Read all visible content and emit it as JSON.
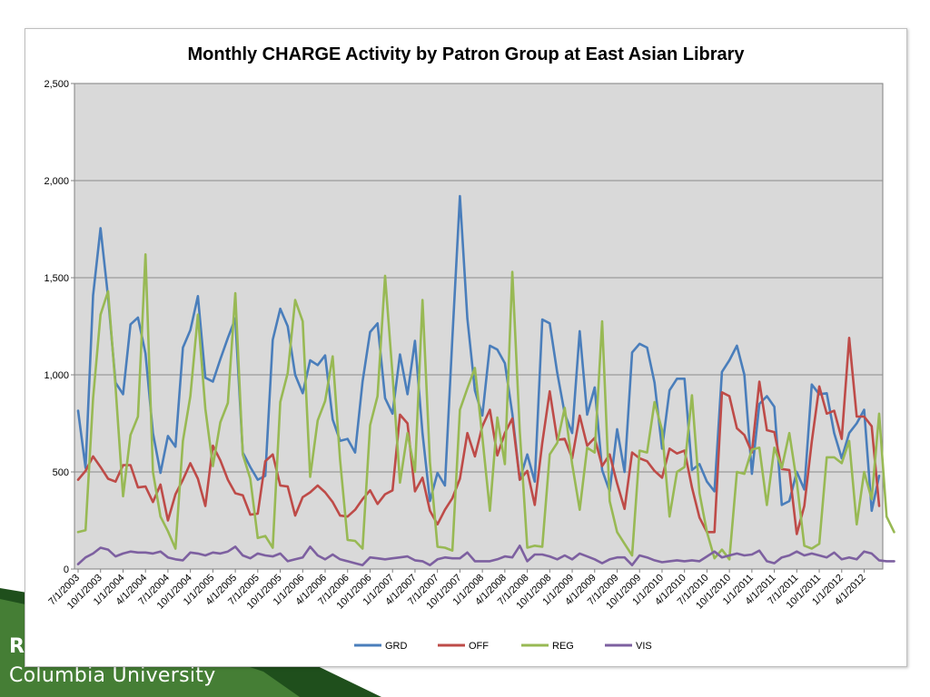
{
  "slide": {
    "footer_line1": "R",
    "footer_line2": "Columbia University",
    "accent_green": "#2e6b2a"
  },
  "chart_data": {
    "type": "line",
    "title": "Monthly CHARGE Activity by Patron Group at East Asian Library",
    "ylim": [
      0,
      2500
    ],
    "yticks": [
      0,
      500,
      1000,
      1500,
      2000,
      2500
    ],
    "ytick_labels": [
      "0",
      "500",
      "1,000",
      "1,500",
      "2,000",
      "2,500"
    ],
    "grid": true,
    "legend_position": "bottom",
    "x_labels": [
      "7/1/2003",
      "10/1/2003",
      "1/1/2004",
      "4/1/2004",
      "7/1/2004",
      "10/1/2004",
      "1/1/2005",
      "4/1/2005",
      "7/1/2005",
      "10/1/2005",
      "1/1/2006",
      "4/1/2006",
      "7/1/2006",
      "10/1/2006",
      "1/1/2007",
      "4/1/2007",
      "7/1/2007",
      "10/1/2007",
      "1/1/2008",
      "4/1/2008",
      "7/1/2008",
      "10/1/2008",
      "1/1/2009",
      "4/1/2009",
      "7/1/2009",
      "10/1/2009",
      "1/1/2010",
      "4/1/2010",
      "7/1/2010",
      "10/1/2010",
      "1/1/2011",
      "4/1/2011",
      "7/1/2011",
      "10/1/2011",
      "1/1/2012",
      "4/1/2012"
    ],
    "series": [
      {
        "name": "GRD",
        "color": "#4a7ebb",
        "values": [
          815,
          520,
          1410,
          1755,
          1400,
          960,
          900,
          1260,
          1295,
          1110,
          700,
          495,
          685,
          630,
          1140,
          1230,
          1405,
          985,
          965,
          1080,
          1190,
          1290,
          600,
          525,
          460,
          480,
          1180,
          1340,
          1250,
          1000,
          905,
          1075,
          1050,
          1100,
          770,
          660,
          670,
          600,
          965,
          1220,
          1265,
          880,
          800,
          1105,
          900,
          1175,
          700,
          350,
          495,
          430,
          1190,
          1920,
          1290,
          920,
          790,
          1150,
          1130,
          1060,
          800,
          460,
          590,
          450,
          1285,
          1265,
          1010,
          800,
          700,
          1225,
          795,
          935,
          510,
          400,
          720,
          500,
          1115,
          1160,
          1140,
          960,
          620,
          920,
          980,
          980,
          510,
          540,
          450,
          400,
          1015,
          1075,
          1150,
          1000,
          490,
          850,
          890,
          835,
          330,
          350,
          500,
          410,
          950,
          900,
          905,
          700,
          570,
          700,
          750,
          820,
          300,
          480
        ]
      },
      {
        "name": "OFF",
        "color": "#be4b48",
        "values": [
          460,
          505,
          580,
          525,
          465,
          450,
          535,
          535,
          420,
          425,
          345,
          435,
          250,
          385,
          460,
          545,
          465,
          325,
          635,
          560,
          460,
          390,
          380,
          280,
          285,
          555,
          590,
          430,
          425,
          275,
          370,
          395,
          430,
          395,
          345,
          275,
          270,
          305,
          360,
          405,
          335,
          385,
          405,
          795,
          750,
          400,
          470,
          300,
          230,
          305,
          365,
          465,
          700,
          580,
          735,
          820,
          585,
          700,
          775,
          460,
          505,
          330,
          650,
          915,
          665,
          670,
          570,
          790,
          635,
          675,
          530,
          590,
          440,
          310,
          600,
          570,
          555,
          505,
          470,
          620,
          595,
          610,
          420,
          265,
          190,
          190,
          910,
          890,
          725,
          690,
          600,
          965,
          715,
          705,
          515,
          510,
          180,
          325,
          655,
          940,
          800,
          815,
          670,
          1190,
          785,
          785,
          735,
          325
        ]
      },
      {
        "name": "REG",
        "color": "#98b954",
        "values": [
          190,
          200,
          880,
          1310,
          1430,
          940,
          375,
          690,
          785,
          1620,
          500,
          270,
          195,
          105,
          660,
          890,
          1310,
          825,
          530,
          755,
          855,
          1420,
          590,
          465,
          160,
          170,
          110,
          860,
          1010,
          1385,
          1275,
          475,
          765,
          865,
          1095,
          560,
          150,
          145,
          105,
          740,
          890,
          1510,
          1000,
          445,
          700,
          500,
          1385,
          550,
          115,
          110,
          95,
          820,
          930,
          1035,
          680,
          300,
          780,
          540,
          1530,
          710,
          110,
          120,
          115,
          590,
          650,
          830,
          540,
          305,
          625,
          600,
          1275,
          350,
          190,
          130,
          70,
          610,
          600,
          860,
          715,
          270,
          500,
          525,
          895,
          390,
          190,
          55,
          100,
          50,
          500,
          490,
          615,
          625,
          330,
          625,
          520,
          700,
          450,
          120,
          105,
          130,
          575,
          575,
          545,
          660,
          230,
          500,
          360,
          800,
          270,
          190
        ]
      },
      {
        "name": "VIS",
        "color": "#7d60a0",
        "values": [
          25,
          60,
          80,
          110,
          100,
          65,
          80,
          90,
          85,
          85,
          80,
          90,
          60,
          50,
          45,
          85,
          80,
          70,
          85,
          80,
          90,
          115,
          70,
          55,
          80,
          70,
          65,
          80,
          40,
          50,
          60,
          115,
          70,
          50,
          75,
          50,
          40,
          30,
          20,
          60,
          55,
          50,
          55,
          60,
          65,
          45,
          40,
          20,
          50,
          60,
          55,
          55,
          85,
          40,
          40,
          40,
          50,
          65,
          60,
          120,
          40,
          75,
          75,
          65,
          50,
          70,
          50,
          80,
          65,
          50,
          30,
          50,
          60,
          60,
          20,
          70,
          60,
          45,
          35,
          40,
          45,
          40,
          45,
          40,
          65,
          90,
          60,
          70,
          80,
          70,
          75,
          95,
          40,
          30,
          60,
          70,
          90,
          70,
          80,
          70,
          60,
          85,
          50,
          60,
          50,
          90,
          80,
          45,
          40,
          40
        ]
      }
    ]
  }
}
